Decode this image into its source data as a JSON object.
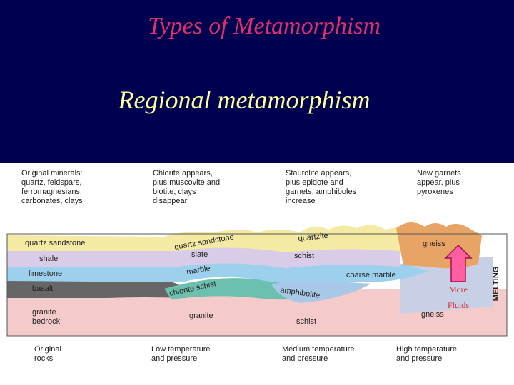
{
  "slide": {
    "title": "Types of Metamorphism",
    "subtitle": "Regional metamorphism"
  },
  "diagram": {
    "headers": [
      {
        "lines": [
          "Original minerals:",
          "quartz, feldspars,",
          "ferromagnesians,",
          "carbonates, clays"
        ]
      },
      {
        "lines": [
          "Chlorite appears,",
          "plus muscovite and",
          "biotite; clays",
          "disappear"
        ]
      },
      {
        "lines": [
          "Staurolite appears,",
          "plus epidote and",
          "garnets; amphiboles",
          "increase"
        ]
      },
      {
        "lines": [
          "New garnets",
          "appear, plus",
          "pyroxenes"
        ]
      }
    ],
    "layer_labels": [
      "quartz sandstone",
      "shale",
      "limestone",
      "basalt",
      "granite",
      "bedrock",
      "quartz sandstone",
      "slate",
      "marble",
      "chlorite schist",
      "granite",
      "quartzite",
      "schist",
      "coarse marble",
      "amphibolite",
      "schist",
      "gneiss",
      "gneiss"
    ],
    "arrow_label": [
      "More",
      "Fluids"
    ],
    "side_label": "MELTING",
    "footers": [
      {
        "lines": [
          "Original",
          "rocks"
        ]
      },
      {
        "lines": [
          "Low temperature",
          "and pressure"
        ]
      },
      {
        "lines": [
          "Medium temperature",
          "and pressure"
        ]
      },
      {
        "lines": [
          "High temperature",
          "and pressure"
        ]
      }
    ]
  }
}
